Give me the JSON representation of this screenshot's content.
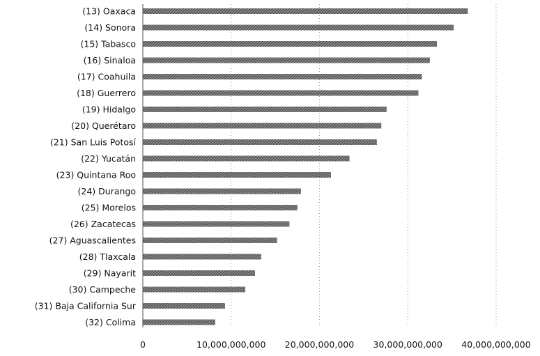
{
  "chart_data": {
    "type": "bar",
    "orientation": "horizontal",
    "categories": [
      "(13) Oaxaca",
      "(14) Sonora",
      "(15) Tabasco",
      "(16) Sinaloa",
      "(17) Coahuila",
      "(18) Guerrero",
      "(19) Hidalgo",
      "(20) Querétaro",
      "(21) San Luis Potosí",
      "(22) Yucatán",
      "(23) Quintana Roo",
      "(24) Durango",
      "(25) Morelos",
      "(26) Zacatecas",
      "(27) Aguascalientes",
      "(28) Tlaxcala",
      "(29) Nayarit",
      "(30) Campeche",
      "(31) Baja California Sur",
      "(32) Colima"
    ],
    "values": [
      36800000000,
      35200000000,
      33300000000,
      32500000000,
      31600000000,
      31200000000,
      27600000000,
      27000000000,
      26500000000,
      23400000000,
      21300000000,
      17900000000,
      17500000000,
      16600000000,
      15200000000,
      13400000000,
      12700000000,
      11600000000,
      9300000000,
      8200000000
    ],
    "xlim": [
      0,
      40000000000
    ],
    "x_ticks": [
      0,
      10000000000,
      20000000000,
      30000000000,
      40000000000
    ],
    "x_tick_labels": [
      "0",
      "10,000,000,000",
      "20,000,000,000",
      "30,000,000,000",
      "40,000,000,000"
    ],
    "grid": true,
    "bar_color": "#6f6f6f"
  }
}
